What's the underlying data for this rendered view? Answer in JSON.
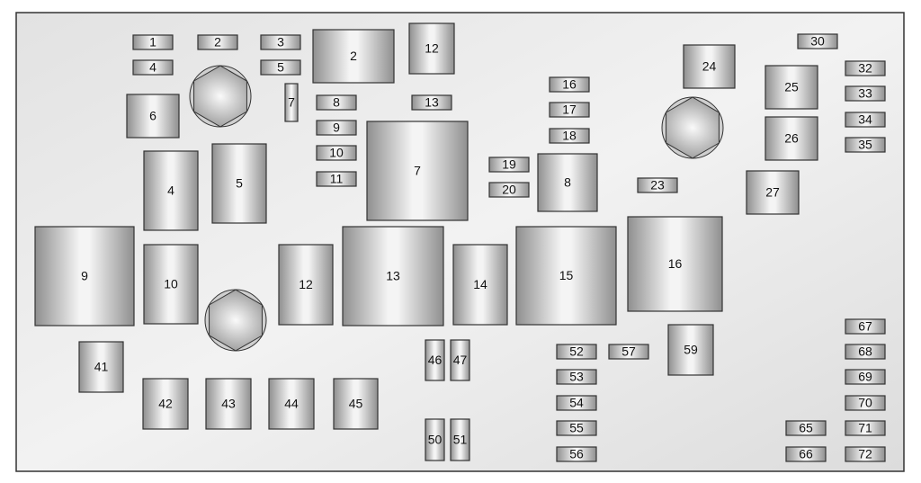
{
  "fuses": [
    "1",
    "2",
    "3",
    "4",
    "5",
    "7",
    "8",
    "9",
    "10",
    "11",
    "13",
    "16",
    "17",
    "18",
    "19",
    "20",
    "23",
    "30",
    "32",
    "33",
    "34",
    "35",
    "52",
    "53",
    "54",
    "55",
    "56",
    "57",
    "65",
    "66",
    "67",
    "68",
    "69",
    "70",
    "71",
    "72",
    "2",
    "12",
    "6",
    "4",
    "5",
    "7",
    "8",
    "24",
    "25",
    "26",
    "27",
    "9",
    "10",
    "12",
    "13",
    "14",
    "15",
    "16",
    "59",
    "41",
    "42",
    "43",
    "44",
    "45",
    "46",
    "47",
    "50",
    "51"
  ]
}
